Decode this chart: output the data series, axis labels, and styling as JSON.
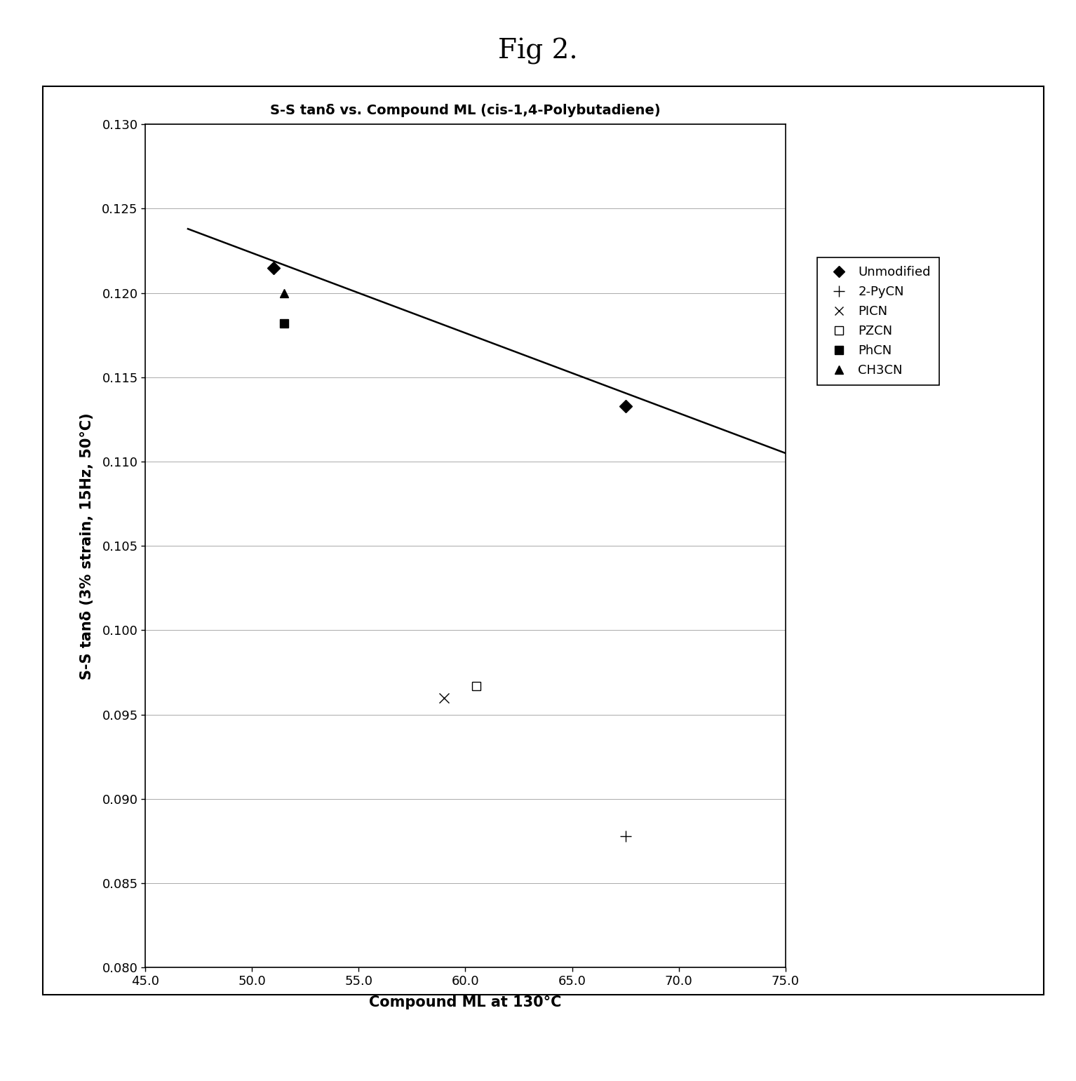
{
  "title_fig": "Fig 2.",
  "chart_title": "S-S tanδ vs. Compound ML (cis-1,4-Polybutadiene)",
  "xlabel": "Compound ML at 130°C",
  "ylabel": "S-S tanδ (3% strain, 15Hz, 50°C)",
  "xlim": [
    45.0,
    75.0
  ],
  "ylim": [
    0.08,
    0.13
  ],
  "xticks": [
    45.0,
    50.0,
    55.0,
    60.0,
    65.0,
    70.0,
    75.0
  ],
  "yticks": [
    0.08,
    0.085,
    0.09,
    0.095,
    0.1,
    0.105,
    0.11,
    0.115,
    0.12,
    0.125,
    0.13
  ],
  "data_points": {
    "Unmodified": {
      "x": [
        51.0,
        67.5
      ],
      "y": [
        0.1215,
        0.1133
      ],
      "marker": "D",
      "mfc": "black",
      "mec": "black",
      "ms": 9
    },
    "2-PyCN": {
      "x": [
        67.5
      ],
      "y": [
        0.0878
      ],
      "marker": "+",
      "mfc": "black",
      "mec": "black",
      "ms": 12
    },
    "PICN": {
      "x": [
        59.0
      ],
      "y": [
        0.096
      ],
      "marker": "x",
      "mfc": "black",
      "mec": "black",
      "ms": 10
    },
    "PZCN": {
      "x": [
        60.5
      ],
      "y": [
        0.0967
      ],
      "marker": "s",
      "mfc": "white",
      "mec": "black",
      "ms": 8
    },
    "PhCN": {
      "x": [
        51.5
      ],
      "y": [
        0.1182
      ],
      "marker": "s",
      "mfc": "black",
      "mec": "black",
      "ms": 9
    },
    "CH3CN": {
      "x": [
        51.5
      ],
      "y": [
        0.12
      ],
      "marker": "^",
      "mfc": "black",
      "mec": "black",
      "ms": 9
    }
  },
  "trendline": {
    "x": [
      47.0,
      75.0
    ],
    "y": [
      0.1238,
      0.1105
    ]
  },
  "legend_items": [
    {
      "label": "Unmodified",
      "marker": "D",
      "mfc": "black",
      "mec": "black",
      "ms": 8
    },
    {
      "label": "2-PyCN",
      "marker": "+",
      "mfc": "black",
      "mec": "black",
      "ms": 11
    },
    {
      "label": "PICN",
      "marker": "x",
      "mfc": "black",
      "mec": "black",
      "ms": 9
    },
    {
      "label": "PZCN",
      "marker": "s",
      "mfc": "white",
      "mec": "black",
      "ms": 8
    },
    {
      "label": "PhCN",
      "marker": "s",
      "mfc": "black",
      "mec": "black",
      "ms": 8
    },
    {
      "label": "CH3CN",
      "marker": "^",
      "mfc": "black",
      "mec": "black",
      "ms": 8
    }
  ],
  "fig_bg": "#ffffff",
  "axes_bg": "#ffffff",
  "fig_width": 15.34,
  "fig_height": 15.41,
  "title_fontsize": 28,
  "chart_title_fontsize": 14,
  "tick_fontsize": 13,
  "label_fontsize": 15
}
